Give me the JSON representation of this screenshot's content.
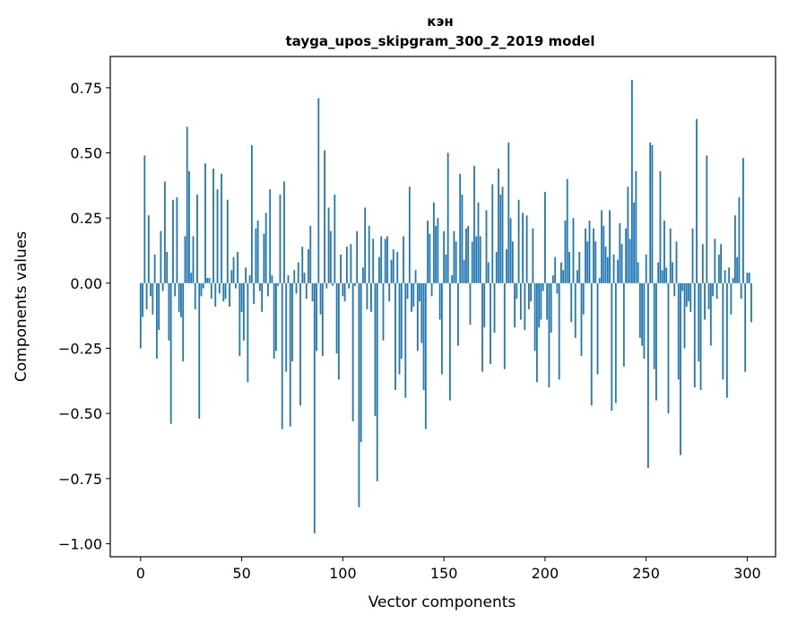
{
  "chart_data": {
    "type": "bar",
    "title": "кэн",
    "subtitle": "tayga_upos_skipgram_300_2_2019 model",
    "xlabel": "Vector components",
    "ylabel": "Components values",
    "xlim": [
      -15,
      314
    ],
    "ylim": [
      -1.05,
      0.87
    ],
    "xticks": [
      0,
      50,
      100,
      150,
      200,
      250,
      300
    ],
    "yticks": [
      -1.0,
      -0.75,
      -0.5,
      -0.25,
      0.0,
      0.25,
      0.5,
      0.75
    ],
    "xtick_labels": [
      "0",
      "50",
      "100",
      "150",
      "200",
      "250",
      "300"
    ],
    "ytick_labels": [
      "−1.00",
      "−0.75",
      "−0.50",
      "−0.25",
      "0.00",
      "0.25",
      "0.50",
      "0.75"
    ],
    "bar_color": "#1f77b4",
    "grid": false,
    "x_start": 0,
    "values": [
      -0.25,
      -0.13,
      0.49,
      -0.1,
      0.26,
      -0.05,
      -0.12,
      0.11,
      -0.29,
      -0.18,
      0.2,
      -0.03,
      0.39,
      0.12,
      -0.22,
      -0.54,
      0.32,
      -0.05,
      0.33,
      -0.11,
      -0.13,
      -0.3,
      0.18,
      0.6,
      0.43,
      0.04,
      0.18,
      -0.1,
      0.34,
      -0.52,
      -0.05,
      -0.02,
      0.46,
      0.02,
      0.02,
      -0.06,
      0.44,
      -0.09,
      0.36,
      -0.04,
      0.42,
      -0.07,
      -0.06,
      0.32,
      -0.09,
      0.05,
      0.1,
      -0.02,
      0.12,
      -0.28,
      -0.11,
      -0.22,
      0.06,
      -0.38,
      0.03,
      0.53,
      -0.08,
      0.21,
      0.24,
      -0.03,
      -0.11,
      0.19,
      0.27,
      -0.05,
      0.36,
      0.03,
      -0.29,
      -0.26,
      -0.01,
      0.34,
      -0.56,
      0.39,
      -0.34,
      0.03,
      -0.55,
      -0.3,
      0.05,
      -0.04,
      0.08,
      -0.47,
      0.14,
      0.04,
      -0.06,
      0.13,
      0.22,
      -0.07,
      -0.96,
      -0.26,
      0.71,
      -0.12,
      -0.28,
      0.51,
      -0.02,
      0.29,
      0.2,
      -0.01,
      0.34,
      -0.27,
      -0.37,
      0.11,
      -0.05,
      -0.07,
      0.14,
      -0.02,
      0.15,
      -0.53,
      -0.01,
      0.2,
      -0.86,
      -0.61,
      0.06,
      0.29,
      -0.1,
      0.22,
      -0.11,
      0.17,
      -0.51,
      -0.76,
      0.1,
      0.18,
      -0.22,
      0.17,
      0.18,
      -0.07,
      0.09,
      0.13,
      -0.41,
      0.12,
      -0.35,
      -0.29,
      0.18,
      -0.44,
      -0.06,
      0.37,
      -0.11,
      -0.09,
      0.05,
      -0.26,
      -0.07,
      -0.23,
      -0.41,
      -0.56,
      0.24,
      0.19,
      -0.05,
      0.31,
      0.22,
      0.25,
      -0.14,
      -0.35,
      0.2,
      0.11,
      0.5,
      -0.45,
      0.03,
      0.2,
      0.16,
      -0.24,
      0.42,
      0.34,
      0.09,
      0.21,
      0.22,
      -0.16,
      0.16,
      0.45,
      0.18,
      0.31,
      0.18,
      -0.34,
      -0.17,
      0.28,
      0.08,
      -0.31,
      0.38,
      -0.19,
      0.12,
      0.44,
      0.34,
      0.37,
      -0.33,
      0.13,
      0.54,
      0.25,
      0.16,
      -0.17,
      -0.06,
      0.32,
      -0.14,
      0.27,
      -0.18,
      0.26,
      -0.1,
      -0.07,
      0.21,
      -0.26,
      -0.38,
      -0.17,
      -0.14,
      -0.03,
      0.35,
      -0.14,
      -0.4,
      -0.19,
      0.03,
      0.1,
      -0.04,
      -0.37,
      0.08,
      0.05,
      0.24,
      0.4,
      0.12,
      -0.15,
      0.25,
      -0.21,
      0.05,
      0.12,
      -0.28,
      -0.12,
      0.21,
      0.16,
      0.24,
      -0.47,
      0.21,
      0.16,
      -0.35,
      0.02,
      0.28,
      0.22,
      0.14,
      0.1,
      0.28,
      -0.49,
      0.11,
      -0.46,
      0.09,
      0.23,
      0.15,
      -0.32,
      0.21,
      0.37,
      0.17,
      0.78,
      0.31,
      0.43,
      0.08,
      -0.21,
      -0.24,
      -0.29,
      0.11,
      -0.71,
      0.54,
      0.53,
      -0.33,
      -0.45,
      0.08,
      0.43,
      0.05,
      0.24,
      0.06,
      -0.5,
      0.21,
      0.08,
      -0.05,
      0.16,
      -0.37,
      -0.66,
      -0.03,
      -0.25,
      -0.09,
      -0.07,
      -0.11,
      0.21,
      -0.4,
      0.63,
      -0.3,
      -0.41,
      0.15,
      -0.14,
      0.49,
      -0.1,
      -0.24,
      -0.05,
      0.17,
      -0.06,
      0.11,
      0.15,
      -0.37,
      0.05,
      -0.44,
      0.06,
      -0.12,
      0.02,
      0.26,
      0.1,
      0.33,
      -0.06,
      0.48,
      -0.34,
      0.04,
      0.04,
      -0.15
    ]
  }
}
